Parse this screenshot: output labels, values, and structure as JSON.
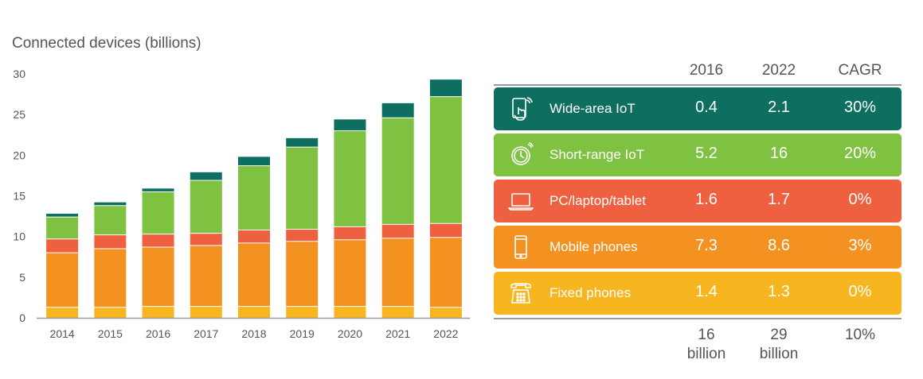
{
  "chart_data": {
    "type": "bar",
    "stacked": true,
    "title": "Connected devices (billions)",
    "categories": [
      "2014",
      "2015",
      "2016",
      "2017",
      "2018",
      "2019",
      "2020",
      "2021",
      "2022"
    ],
    "ylim": [
      0,
      30
    ],
    "yticks": [
      0,
      5,
      10,
      15,
      20,
      25,
      30
    ],
    "series": [
      {
        "name": "Fixed phones",
        "color": "#f7b520",
        "values": [
          1.3,
          1.3,
          1.4,
          1.4,
          1.4,
          1.4,
          1.4,
          1.4,
          1.3
        ]
      },
      {
        "name": "Mobile phones",
        "color": "#f39121",
        "values": [
          6.7,
          7.2,
          7.3,
          7.5,
          7.8,
          8.0,
          8.2,
          8.4,
          8.6
        ]
      },
      {
        "name": "PC/laptop/tablet",
        "color": "#ef6040",
        "values": [
          1.7,
          1.7,
          1.6,
          1.5,
          1.6,
          1.5,
          1.6,
          1.7,
          1.7
        ]
      },
      {
        "name": "Short-range IoT",
        "color": "#7fc141",
        "values": [
          2.7,
          3.6,
          5.2,
          6.5,
          7.9,
          10.1,
          11.8,
          13.1,
          15.6
        ]
      },
      {
        "name": "Wide-area IoT",
        "color": "#0e6e5f",
        "values": [
          0.4,
          0.4,
          0.4,
          1.0,
          1.1,
          1.1,
          1.4,
          1.8,
          2.1
        ]
      }
    ]
  },
  "table": {
    "headers": [
      "2016",
      "2022",
      "CAGR"
    ],
    "rows": [
      {
        "label": "Wide-area IoT",
        "icon": "tablet-touch-icon",
        "color": "#0e6e5f",
        "v2016": "0.4",
        "v2022": "2.1",
        "cagr": "30%"
      },
      {
        "label": "Short-range IoT",
        "icon": "watch-icon",
        "color": "#7fc141",
        "v2016": "5.2",
        "v2022": "16",
        "cagr": "20%"
      },
      {
        "label": "PC/laptop/tablet",
        "icon": "laptop-icon",
        "color": "#ef6040",
        "v2016": "1.6",
        "v2022": "1.7",
        "cagr": "0%"
      },
      {
        "label": "Mobile phones",
        "icon": "mobile-phone-icon",
        "color": "#f39121",
        "v2016": "7.3",
        "v2022": "8.6",
        "cagr": "3%"
      },
      {
        "label": "Fixed phones",
        "icon": "desk-phone-icon",
        "color": "#f7b520",
        "v2016": "1.4",
        "v2022": "1.3",
        "cagr": "0%"
      }
    ],
    "totals": {
      "t2016_value": "16",
      "t2016_unit": "billion",
      "t2022_value": "29",
      "t2022_unit": "billion",
      "cagr": "10%"
    }
  }
}
